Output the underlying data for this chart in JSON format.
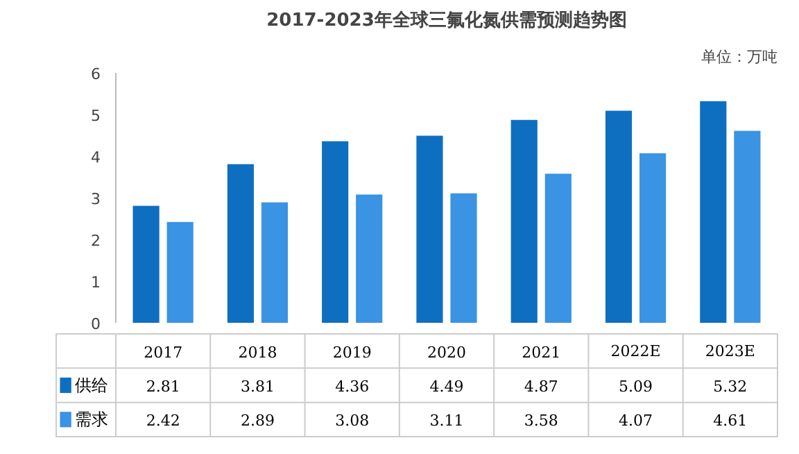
{
  "chart_data": {
    "type": "bar",
    "title": "2017-2023年全球三氟化氮供需预测趋势图",
    "annotations": [
      "单位：万吨"
    ],
    "categories": [
      "2017",
      "2018",
      "2019",
      "2020",
      "2021",
      "2022E",
      "2023E"
    ],
    "series": [
      {
        "name": "供给",
        "color": "#0e6fc0",
        "values": [
          2.81,
          3.81,
          4.36,
          4.49,
          4.87,
          5.09,
          5.32
        ]
      },
      {
        "name": "需求",
        "color": "#3a93e3",
        "values": [
          2.42,
          2.89,
          3.08,
          3.11,
          3.58,
          4.07,
          4.61
        ]
      }
    ],
    "ylim": [
      0,
      6
    ],
    "yticks": [
      0,
      1,
      2,
      3,
      4,
      5,
      6
    ],
    "grid": false,
    "legend": "bottom",
    "data_labels": true
  }
}
